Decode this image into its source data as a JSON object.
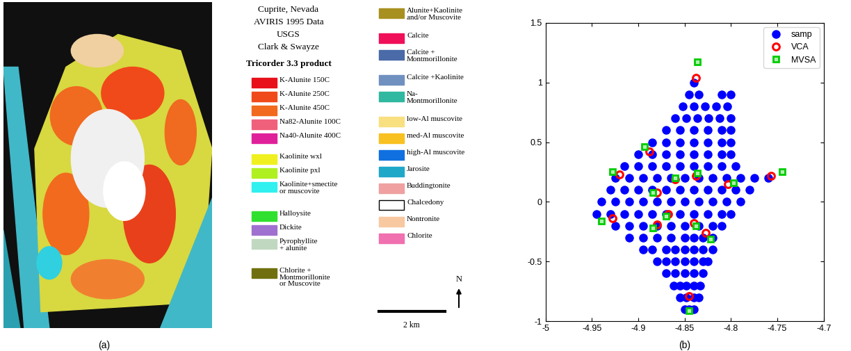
{
  "panel_a": {
    "label": "(a)",
    "title_lines": [
      "Cuprite, Nevada",
      "AVIRIS 1995 Data",
      "USGS",
      "Clark & Swayze",
      "Tricorder 3.3 product"
    ],
    "legend_columns": [
      [
        {
          "label": "K-Alunite 150C",
          "color": "#e8101a"
        },
        {
          "label": "K-Alunite 250C",
          "color": "#f04a1a"
        },
        {
          "label": "K-Alunite 450C",
          "color": "#f26a1e"
        },
        {
          "label": "Na82-Alunite 100C",
          "color": "#f0607a"
        },
        {
          "label": "Na40-Alunite 400C",
          "color": "#e0209a"
        },
        {
          "label": "Kaolinite wxl",
          "color": "#f0f020"
        },
        {
          "label": "Kaolinite pxl",
          "color": "#b0f020"
        },
        {
          "label": "Kaolinite+smectite\nor muscovite",
          "color": "#30f0f0"
        },
        {
          "label": "Halloysite",
          "color": "#30e030"
        },
        {
          "label": "Dickite",
          "color": "#a070d0"
        },
        {
          "label": "Pyrophyllite\n+ alunite",
          "color": "#c0d8c0"
        },
        {
          "label": "Chlorite +\nMontmorillonite\nor Muscovite",
          "color": "#707010"
        }
      ],
      [
        {
          "label": "Alunite+Kaolinite\nand/or Muscovite",
          "color": "#a89020"
        },
        {
          "label": "Calcite",
          "color": "#f0105a"
        },
        {
          "label": "Calcite +\nMontmorillonite",
          "color": "#4a6aa8"
        },
        {
          "label": "Calcite +Kaolinite",
          "color": "#7090c0"
        },
        {
          "label": "Na-\nMontmorillonite",
          "color": "#30b8a0"
        },
        {
          "label": "low-Al muscovite",
          "color": "#f8e080"
        },
        {
          "label": "med-Al muscovite",
          "color": "#f8c020"
        },
        {
          "label": "high-Al muscovite",
          "color": "#1070e0"
        },
        {
          "label": "Jarosite",
          "color": "#20a8c8"
        },
        {
          "label": "Buddingtonite",
          "color": "#f0a0a0"
        },
        {
          "label": "Chalcedony",
          "color": "#ffffff"
        },
        {
          "label": "Nontronite",
          "color": "#f8c8a0"
        },
        {
          "label": "Chlorite",
          "color": "#f070b0"
        }
      ]
    ],
    "scale_label": "2 km",
    "north_label": "N"
  },
  "chart_data": {
    "type": "scatter",
    "label": "(b)",
    "xlim": [
      -5,
      -4.7
    ],
    "xticks": [
      -5,
      -4.95,
      -4.9,
      -4.85,
      -4.8,
      -4.75,
      -4.7
    ],
    "ylim": [
      -1,
      1.5
    ],
    "yticks": [
      -1,
      -0.5,
      0,
      0.5,
      1,
      1.5
    ],
    "legend": "upper right",
    "series": [
      {
        "name": "samp",
        "color": "#0000ff",
        "marker": "dot",
        "rows": [
          {
            "y": -0.9,
            "x": [
              -4.85,
              -4.845,
              -4.84
            ]
          },
          {
            "y": -0.8,
            "x": [
              -4.855,
              -4.848,
              -4.84,
              -4.835
            ]
          },
          {
            "y": -0.7,
            "x": [
              -4.862,
              -4.855,
              -4.848,
              -4.84,
              -4.833
            ]
          },
          {
            "y": -0.6,
            "x": [
              -4.87,
              -4.86,
              -4.85,
              -4.84,
              -4.83
            ]
          },
          {
            "y": -0.5,
            "x": [
              -4.88,
              -4.87,
              -4.86,
              -4.85,
              -4.84,
              -4.83,
              -4.825
            ]
          },
          {
            "y": -0.4,
            "x": [
              -4.895,
              -4.885,
              -4.87,
              -4.86,
              -4.85,
              -4.84,
              -4.83,
              -4.82
            ]
          },
          {
            "y": -0.3,
            "x": [
              -4.91,
              -4.895,
              -4.88,
              -4.865,
              -4.85,
              -4.84,
              -4.83,
              -4.82
            ]
          },
          {
            "y": -0.2,
            "x": [
              -4.925,
              -4.91,
              -4.895,
              -4.88,
              -4.865,
              -4.85,
              -4.835,
              -4.82,
              -4.81
            ]
          },
          {
            "y": -0.1,
            "x": [
              -4.945,
              -4.93,
              -4.915,
              -4.9,
              -4.885,
              -4.87,
              -4.855,
              -4.84,
              -4.825,
              -4.81,
              -4.8
            ]
          },
          {
            "y": 0,
            "x": [
              -4.94,
              -4.925,
              -4.91,
              -4.895,
              -4.88,
              -4.865,
              -4.85,
              -4.835,
              -4.82,
              -4.805,
              -4.79
            ]
          },
          {
            "y": 0.1,
            "x": [
              -4.93,
              -4.915,
              -4.9,
              -4.885,
              -4.87,
              -4.855,
              -4.84,
              -4.825,
              -4.81,
              -4.795,
              -4.78
            ]
          },
          {
            "y": 0.2,
            "x": [
              -4.925,
              -4.91,
              -4.895,
              -4.88,
              -4.865,
              -4.85,
              -4.835,
              -4.82,
              -4.805,
              -4.79,
              -4.775,
              -4.76
            ]
          },
          {
            "y": 0.3,
            "x": [
              -4.915,
              -4.9,
              -4.885,
              -4.87,
              -4.855,
              -4.84,
              -4.825,
              -4.81,
              -4.795
            ]
          },
          {
            "y": 0.4,
            "x": [
              -4.9,
              -4.885,
              -4.87,
              -4.855,
              -4.84,
              -4.825,
              -4.81,
              -4.8
            ]
          },
          {
            "y": 0.5,
            "x": [
              -4.885,
              -4.87,
              -4.855,
              -4.84,
              -4.825,
              -4.81,
              -4.8
            ]
          },
          {
            "y": 0.6,
            "x": [
              -4.87,
              -4.855,
              -4.84,
              -4.825,
              -4.81,
              -4.8
            ]
          },
          {
            "y": 0.7,
            "x": [
              -4.86,
              -4.848,
              -4.836,
              -4.824,
              -4.812,
              -4.8
            ]
          },
          {
            "y": 0.8,
            "x": [
              -4.852,
              -4.84,
              -4.828,
              -4.816,
              -4.804
            ]
          },
          {
            "y": 0.9,
            "x": [
              -4.845,
              -4.835,
              -4.81,
              -4.8
            ]
          },
          {
            "y": 1.0,
            "x": [
              -4.84
            ]
          }
        ]
      },
      {
        "name": "VCA",
        "color": "#ff0000",
        "marker": "circle",
        "x": [
          -4.838,
          -4.888,
          -4.92,
          -4.86,
          -4.838,
          -4.757,
          -4.803,
          -4.88,
          -4.928,
          -4.88,
          -4.868,
          -4.84,
          -4.827,
          -4.845
        ],
        "y": [
          1.04,
          0.42,
          0.23,
          0.19,
          0.22,
          0.22,
          0.15,
          0.08,
          -0.14,
          -0.19,
          -0.1,
          -0.18,
          -0.26,
          -0.79
        ]
      },
      {
        "name": "MVSA",
        "color": "#00cc00",
        "marker": "square",
        "x": [
          -4.836,
          -4.893,
          -4.928,
          -4.86,
          -4.836,
          -4.745,
          -4.797,
          -4.884,
          -4.94,
          -4.884,
          -4.87,
          -4.838,
          -4.822,
          -4.845
        ],
        "y": [
          1.17,
          0.46,
          0.25,
          0.2,
          0.24,
          0.25,
          0.16,
          0.08,
          -0.16,
          -0.22,
          -0.12,
          -0.2,
          -0.31,
          -0.91
        ]
      }
    ]
  }
}
